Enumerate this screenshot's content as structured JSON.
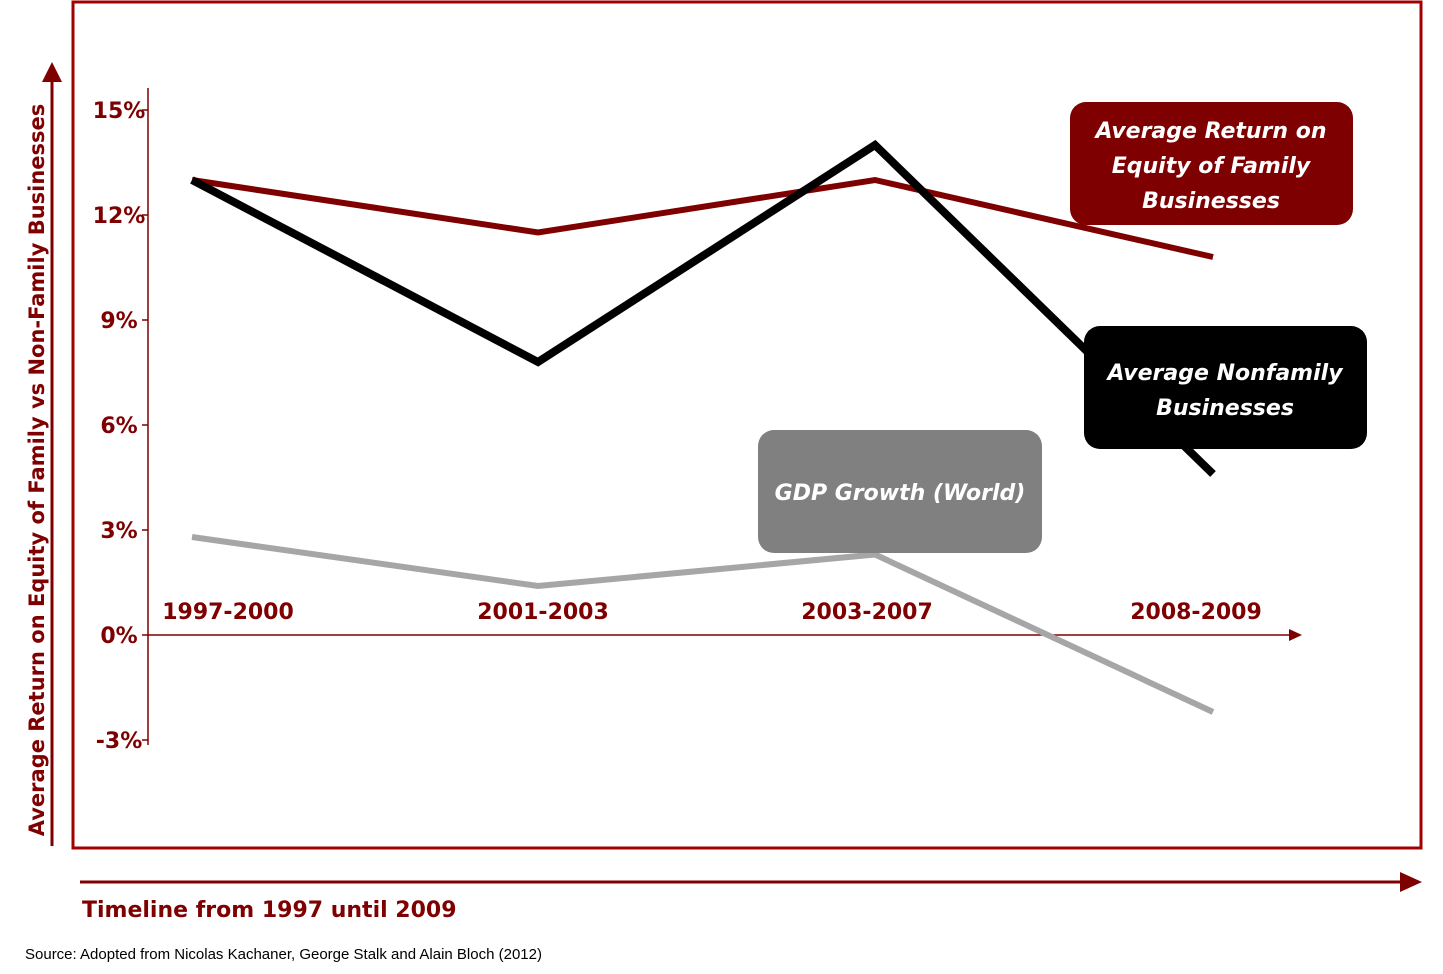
{
  "chart_data": {
    "type": "line",
    "categories": [
      "1997-2000",
      "2001-2003",
      "2003-2007",
      "2008-2009"
    ],
    "ylim": [
      -3,
      15
    ],
    "yticks": [
      15,
      12,
      9,
      6,
      3,
      0,
      -3
    ],
    "ytick_labels": [
      "15%",
      "12%",
      "9%",
      "6%",
      "3%",
      "0%",
      "-3%"
    ],
    "ylabel": "Average Return on Equity of Family vs Non-Family Businesses",
    "xlabel": "Timeline from 1997 until 2009",
    "series": [
      {
        "name": "Average Return on Equity of Family Businesses",
        "label_lines": [
          "Average Return on",
          "Equity of Family",
          "Businesses"
        ],
        "color": "#7f0000",
        "values": [
          13.0,
          11.5,
          13.0,
          10.8
        ]
      },
      {
        "name": "Average Nonfamily Businesses",
        "label_lines": [
          "Average Nonfamily",
          "Businesses"
        ],
        "color": "#000000",
        "values": [
          13.0,
          7.8,
          14.0,
          4.6
        ]
      },
      {
        "name": "GDP Growth (World)",
        "label_lines": [
          "GDP Growth (World)"
        ],
        "color": "#a6a6a6",
        "values": [
          2.8,
          1.4,
          2.3,
          -2.2
        ]
      }
    ],
    "source": "Source: Adopted from Nicolas Kachaner, George  Stalk and  Alain Bloch (2012)"
  },
  "colors": {
    "accent": "#7f0000",
    "frame": "#a00000",
    "gdp_box": "#808080",
    "nonfamily_box": "#000000",
    "family_box": "#7f0000"
  }
}
